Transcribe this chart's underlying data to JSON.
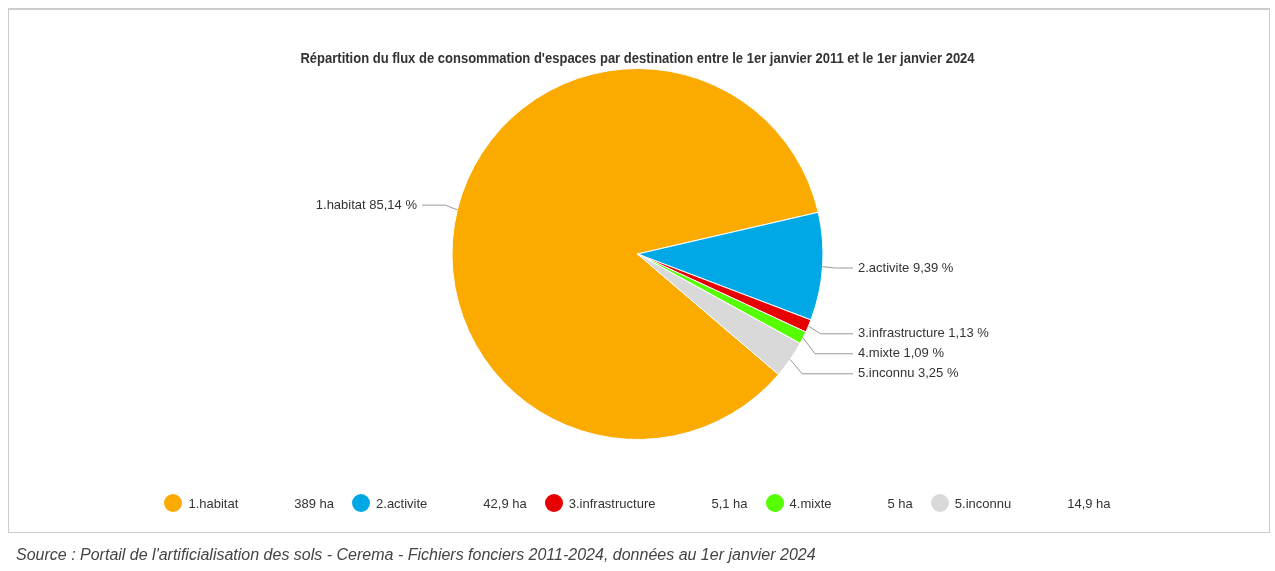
{
  "chart_data": {
    "type": "pie",
    "title": "Répartition du flux de consommation d'espaces par destination entre le 1er janvier 2011 et le 1er janvier 2024",
    "categories": [
      "1.habitat",
      "2.activite",
      "3.infrastructure",
      "4.mixte",
      "5.inconnu"
    ],
    "values": [
      85.14,
      9.39,
      1.13,
      1.09,
      3.25
    ],
    "colors": [
      "#fbaa00",
      "#00a8e6",
      "#e60000",
      "#55ff00",
      "#d9d9d9"
    ],
    "value_labels": [
      "85,14 %",
      "9,39 %",
      "1,13 %",
      "1,09 %",
      "3,25 %"
    ],
    "legend": "bottom",
    "annotations": [
      {
        "text": "389 ha",
        "x": "1.habitat"
      },
      {
        "text": "42,9 ha",
        "x": "2.activite"
      },
      {
        "text": "5,1 ha",
        "x": "3.infrastructure"
      },
      {
        "text": "5 ha",
        "x": "4.mixte"
      },
      {
        "text": "14,9 ha",
        "x": "5.inconnu"
      },
      "Source : Portail de l'artificialisation des sols - Cerema - Fichiers fonciers 2011-2024, données au 1er janvier 2024"
    ]
  }
}
